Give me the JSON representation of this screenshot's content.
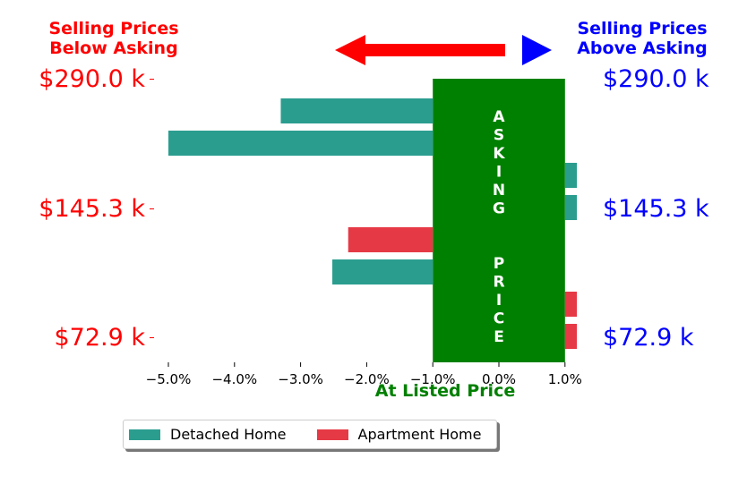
{
  "headers": {
    "left": [
      "Selling Prices",
      "Below Asking"
    ],
    "right": [
      "Selling Prices",
      "Above Asking"
    ],
    "left_color": "#ff0000",
    "right_color": "#0000ff",
    "arrow_colors": {
      "left": "#ff0000",
      "right": "#0000ff"
    }
  },
  "price_labels": [
    "$290.0 k",
    "$145.3 k",
    "$72.9 k"
  ],
  "center_band": {
    "text": "ASKING  PRICE",
    "color": "#008000",
    "label": "At Listed Price"
  },
  "legend": [
    {
      "label": "Detached Home",
      "color": "#2a9d8f"
    },
    {
      "label": "Apartment Home",
      "color": "#e63946"
    }
  ],
  "chart_data": {
    "type": "bar",
    "orientation": "horizontal",
    "x_ticks": [
      "−5.0%",
      "−4.0%",
      "−3.0%",
      "−2.0%",
      "−1.0%",
      "0.0%",
      "1.0%"
    ],
    "xlim": [
      -5.3,
      1.3
    ],
    "asking_band": [
      -1.0,
      1.0
    ],
    "bars": [
      {
        "series": "Detached Home",
        "start": -1.0,
        "end": -3.3
      },
      {
        "series": "Detached Home",
        "start": -1.0,
        "end": -5.0
      },
      {
        "series": "Detached Home",
        "start": 1.0,
        "end": 1.18
      },
      {
        "series": "Detached Home",
        "start": 1.0,
        "end": 1.18
      },
      {
        "series": "Apartment Home",
        "start": -1.0,
        "end": -2.28
      },
      {
        "series": "Detached Home",
        "start": -1.0,
        "end": -2.52
      },
      {
        "series": "Apartment Home",
        "start": 1.0,
        "end": 1.18
      },
      {
        "series": "Apartment Home",
        "start": 1.0,
        "end": 1.18
      }
    ],
    "series_colors": {
      "Detached Home": "#2a9d8f",
      "Apartment Home": "#e63946"
    }
  }
}
